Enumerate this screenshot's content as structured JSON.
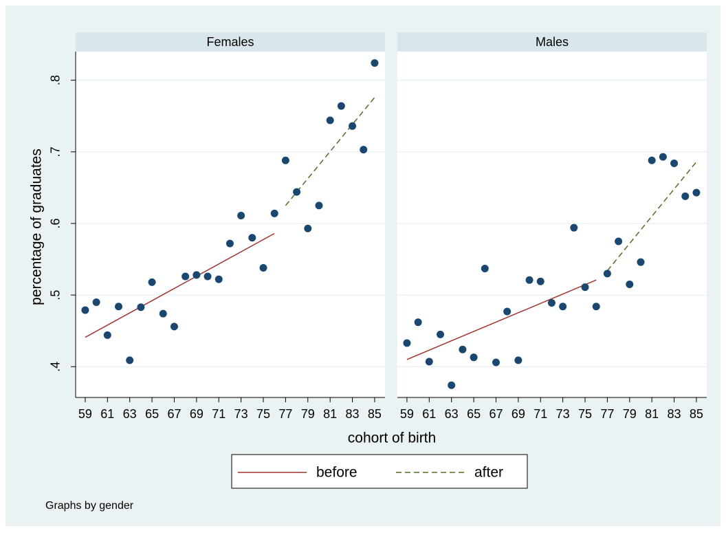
{
  "chart_data": [
    {
      "type": "scatter",
      "title": "Females",
      "x": [
        59,
        60,
        61,
        62,
        63,
        64,
        65,
        66,
        67,
        68,
        69,
        70,
        71,
        72,
        73,
        74,
        75,
        76,
        77,
        78,
        79,
        80,
        81,
        82,
        83,
        84,
        85
      ],
      "values": [
        0.479,
        0.49,
        0.444,
        0.484,
        0.409,
        0.483,
        0.518,
        0.474,
        0.456,
        0.526,
        0.528,
        0.526,
        0.522,
        0.572,
        0.611,
        0.58,
        0.538,
        0.614,
        0.688,
        0.644,
        0.593,
        0.625,
        0.744,
        0.764,
        0.736,
        0.703,
        0.824
      ],
      "color": "#1a476f",
      "fits": [
        {
          "x": [
            59,
            76
          ],
          "values": [
            0.441,
            0.586
          ]
        },
        {
          "x": [
            77,
            85
          ],
          "values": [
            0.625,
            0.776
          ]
        }
      ],
      "xlim": [
        58.14,
        85.93
      ],
      "xticks": [
        59,
        61,
        63,
        65,
        67,
        69,
        71,
        73,
        75,
        77,
        79,
        81,
        83,
        85
      ]
    },
    {
      "type": "scatter",
      "title": "Males",
      "x": [
        59,
        60,
        61,
        62,
        63,
        64,
        65,
        66,
        67,
        68,
        69,
        70,
        71,
        72,
        73,
        74,
        75,
        76,
        77,
        78,
        79,
        80,
        81,
        82,
        83,
        84,
        85
      ],
      "values": [
        0.433,
        0.462,
        0.407,
        0.445,
        0.374,
        0.424,
        0.413,
        0.537,
        0.406,
        0.477,
        0.409,
        0.521,
        0.519,
        0.489,
        0.484,
        0.594,
        0.511,
        0.484,
        0.53,
        0.575,
        0.515,
        0.546,
        0.688,
        0.693,
        0.684,
        0.638,
        0.643
      ],
      "color": "#1a476f",
      "fits": [
        {
          "x": [
            59,
            76
          ],
          "values": [
            0.41,
            0.521
          ]
        },
        {
          "x": [
            77,
            85
          ],
          "values": [
            0.534,
            0.686
          ]
        }
      ],
      "xlim": [
        58.14,
        85.93
      ],
      "xticks": [
        59,
        61,
        63,
        65,
        67,
        69,
        71,
        73,
        75,
        77,
        79,
        81,
        83,
        85
      ]
    }
  ],
  "ylim": [
    0.357,
    0.84
  ],
  "yticks": [
    {
      "value": 0.4,
      "label": ".4"
    },
    {
      "value": 0.5,
      "label": ".5"
    },
    {
      "value": 0.6,
      "label": ".6"
    },
    {
      "value": 0.7,
      "label": ".7"
    },
    {
      "value": 0.8,
      "label": ".8"
    }
  ],
  "grid": true,
  "ylabel": "percentage of graduates",
  "xlabel": "cohort of birth",
  "legend": [
    {
      "name": "before",
      "color": "#a0322d",
      "dashed": false
    },
    {
      "name": "after",
      "color": "#4e6d23",
      "dashed": true
    }
  ],
  "note": "Graphs by gender"
}
